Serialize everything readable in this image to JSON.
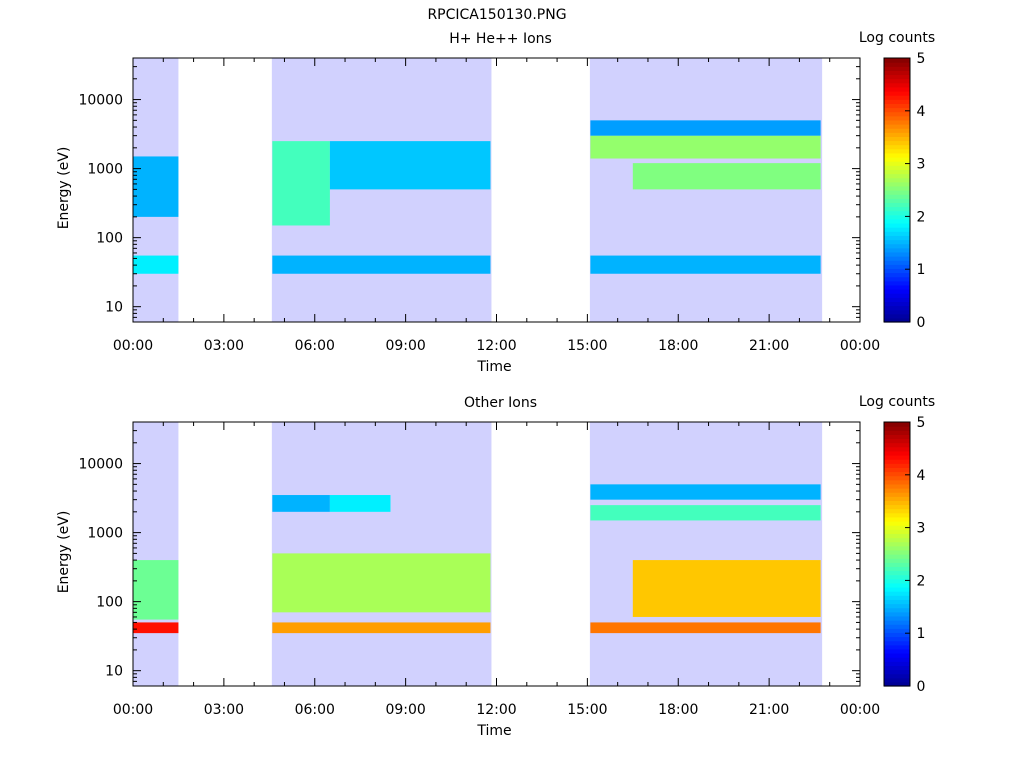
{
  "figure_title": "RPCICA150130.PNG",
  "colors": {
    "colormap": [
      "#00008f",
      "#0000ff",
      "#0080ff",
      "#00ffff",
      "#80ff80",
      "#ffff00",
      "#ff8000",
      "#ff0000",
      "#800000"
    ],
    "background": "#ffffff",
    "axes": "#000000"
  },
  "chart_data": [
    {
      "type": "heatmap",
      "title": "H+ He++ Ions",
      "xlabel": "Time",
      "ylabel": "Energy (eV)",
      "x_unit": "hours",
      "xlim": [
        0,
        24
      ],
      "ylim": [
        6,
        40000
      ],
      "yscale": "log",
      "xticks": [
        "00:00",
        "03:00",
        "06:00",
        "09:00",
        "12:00",
        "15:00",
        "18:00",
        "21:00",
        "00:00"
      ],
      "yticks": [
        "10",
        "100",
        "1000",
        "10000"
      ],
      "colorbar": {
        "label": "Log counts",
        "range": [
          0,
          5
        ],
        "ticks": [
          "0",
          "1",
          "2",
          "3",
          "4",
          "5"
        ]
      },
      "data_intervals": [
        {
          "start": "00:00",
          "end": "01:30"
        },
        {
          "start": "04:35",
          "end": "11:50"
        },
        {
          "start": "15:05",
          "end": "22:45"
        }
      ],
      "bands": [
        {
          "t0": 0.0,
          "t1": 1.5,
          "e0": 30,
          "e1": 55,
          "level": 1.8
        },
        {
          "t0": 0.0,
          "t1": 1.5,
          "e0": 200,
          "e1": 1500,
          "level": 1.5
        },
        {
          "t0": 4.6,
          "t1": 11.8,
          "e0": 30,
          "e1": 55,
          "level": 1.5
        },
        {
          "t0": 4.6,
          "t1": 6.5,
          "e0": 150,
          "e1": 2500,
          "level": 2.2
        },
        {
          "t0": 6.5,
          "t1": 11.8,
          "e0": 500,
          "e1": 2500,
          "level": 1.6
        },
        {
          "t0": 15.1,
          "t1": 22.7,
          "e0": 30,
          "e1": 55,
          "level": 1.5
        },
        {
          "t0": 15.1,
          "t1": 22.7,
          "e0": 1400,
          "e1": 3000,
          "level": 2.6
        },
        {
          "t0": 16.5,
          "t1": 22.7,
          "e0": 500,
          "e1": 1200,
          "level": 2.5
        },
        {
          "t0": 15.1,
          "t1": 22.7,
          "e0": 3000,
          "e1": 5000,
          "level": 1.4
        }
      ]
    },
    {
      "type": "heatmap",
      "title": "Other Ions",
      "xlabel": "Time",
      "ylabel": "Energy (eV)",
      "x_unit": "hours",
      "xlim": [
        0,
        24
      ],
      "ylim": [
        6,
        40000
      ],
      "yscale": "log",
      "xticks": [
        "00:00",
        "03:00",
        "06:00",
        "09:00",
        "12:00",
        "15:00",
        "18:00",
        "21:00",
        "00:00"
      ],
      "yticks": [
        "10",
        "100",
        "1000",
        "10000"
      ],
      "colorbar": {
        "label": "Log counts",
        "range": [
          0,
          5
        ],
        "ticks": [
          "0",
          "1",
          "2",
          "3",
          "4",
          "5"
        ]
      },
      "data_intervals": [
        {
          "start": "00:00",
          "end": "01:30"
        },
        {
          "start": "04:35",
          "end": "11:50"
        },
        {
          "start": "15:05",
          "end": "22:45"
        }
      ],
      "bands": [
        {
          "t0": 0.0,
          "t1": 1.5,
          "e0": 35,
          "e1": 50,
          "level": 4.3
        },
        {
          "t0": 0.0,
          "t1": 1.5,
          "e0": 55,
          "e1": 400,
          "level": 2.4
        },
        {
          "t0": 4.6,
          "t1": 11.8,
          "e0": 35,
          "e1": 50,
          "level": 3.6
        },
        {
          "t0": 4.6,
          "t1": 11.8,
          "e0": 70,
          "e1": 500,
          "level": 2.7
        },
        {
          "t0": 4.6,
          "t1": 6.5,
          "e0": 2000,
          "e1": 3500,
          "level": 1.5
        },
        {
          "t0": 6.5,
          "t1": 8.5,
          "e0": 2000,
          "e1": 3500,
          "level": 1.8
        },
        {
          "t0": 15.1,
          "t1": 22.7,
          "e0": 35,
          "e1": 50,
          "level": 3.8
        },
        {
          "t0": 16.5,
          "t1": 22.7,
          "e0": 60,
          "e1": 400,
          "level": 3.4
        },
        {
          "t0": 15.1,
          "t1": 22.7,
          "e0": 1500,
          "e1": 2500,
          "level": 2.2
        },
        {
          "t0": 15.1,
          "t1": 22.7,
          "e0": 3000,
          "e1": 5000,
          "level": 1.5
        }
      ]
    }
  ]
}
